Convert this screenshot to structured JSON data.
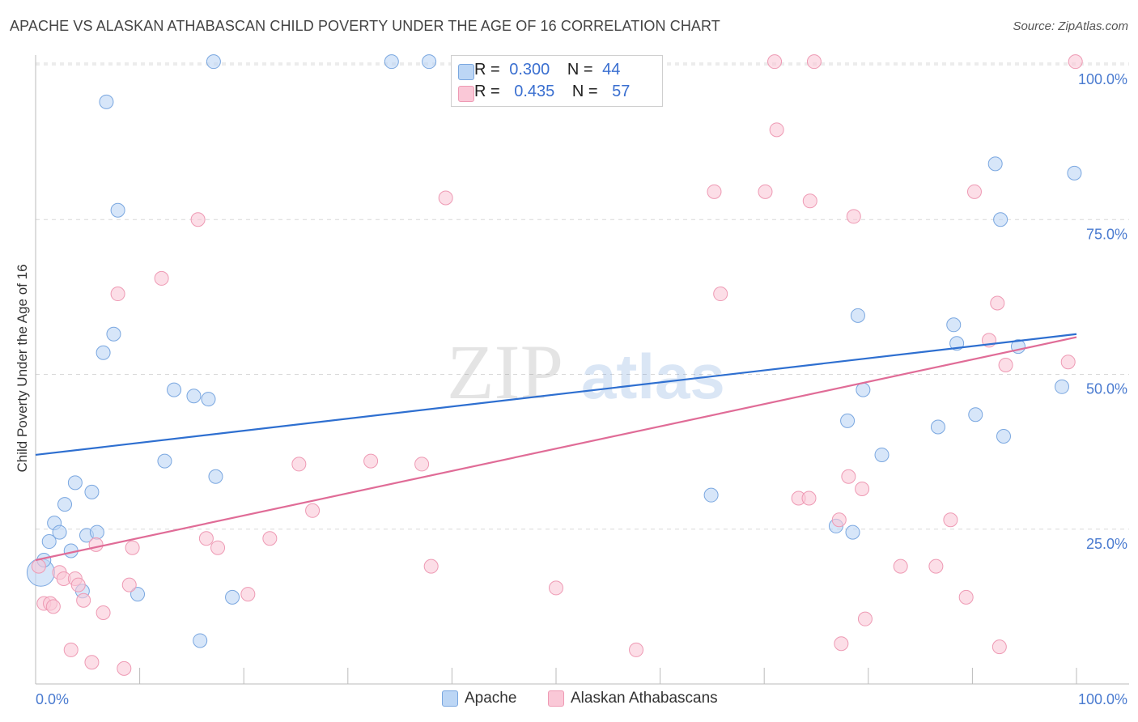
{
  "title": "APACHE VS ALASKAN ATHABASCAN CHILD POVERTY UNDER THE AGE OF 16 CORRELATION CHART",
  "source": "Source: ZipAtlas.com",
  "watermark": {
    "zip": "ZIP",
    "atlas": "atlas"
  },
  "legend_top": [
    {
      "r_label": "R =",
      "r_value": "0.300",
      "n_label": "N =",
      "n_value": "44",
      "color": "#a8c8f0"
    },
    {
      "r_label": "R =",
      "r_value": "0.435",
      "n_label": "N =",
      "n_value": "57",
      "color": "#f7b8cb"
    }
  ],
  "legend_bottom": [
    "Apache",
    "Alaskan Athabascans"
  ],
  "colors": {
    "apache_fill": "#bcd6f5",
    "apache_stroke": "#7aa7e0",
    "apache_line": "#2e6fd0",
    "athabascan_fill": "#fac8d7",
    "athabascan_stroke": "#ee9ab4",
    "athabascan_line": "#e06c97",
    "tick_text": "#4a7bd0",
    "grid": "#d8d8d8"
  },
  "chart_data": {
    "type": "scatter",
    "xlabel": "",
    "ylabel": "Child Poverty Under the Age of 16",
    "xlim": [
      0,
      100
    ],
    "ylim": [
      0,
      100
    ],
    "x_tick_labels": [
      "0.0%",
      "100.0%"
    ],
    "y_tick_labels": [
      "25.0%",
      "50.0%",
      "75.0%",
      "100.0%"
    ],
    "y_ticks": [
      25,
      50,
      75,
      100
    ],
    "grid": true,
    "legend_position": "top-center",
    "series": [
      {
        "name": "Apache",
        "r": 0.3,
        "n": 44,
        "trend": {
          "x": [
            0,
            100
          ],
          "y": [
            37,
            56.5
          ]
        },
        "points": [
          {
            "x": 0.5,
            "y": 18,
            "big": true
          },
          {
            "x": 0.8,
            "y": 20
          },
          {
            "x": 1.3,
            "y": 23
          },
          {
            "x": 1.8,
            "y": 26
          },
          {
            "x": 2.3,
            "y": 24.5
          },
          {
            "x": 2.8,
            "y": 29
          },
          {
            "x": 3.4,
            "y": 21.5
          },
          {
            "x": 3.8,
            "y": 32.5
          },
          {
            "x": 4.5,
            "y": 15
          },
          {
            "x": 4.9,
            "y": 24
          },
          {
            "x": 5.4,
            "y": 31
          },
          {
            "x": 5.9,
            "y": 24.5
          },
          {
            "x": 6.5,
            "y": 53.5
          },
          {
            "x": 6.8,
            "y": 94
          },
          {
            "x": 7.5,
            "y": 56.5
          },
          {
            "x": 7.9,
            "y": 76.5
          },
          {
            "x": 9.8,
            "y": 14.5
          },
          {
            "x": 12.4,
            "y": 36
          },
          {
            "x": 13.3,
            "y": 47.5
          },
          {
            "x": 15.2,
            "y": 46.5
          },
          {
            "x": 15.8,
            "y": 7
          },
          {
            "x": 16.6,
            "y": 46
          },
          {
            "x": 17.1,
            "y": 100.5
          },
          {
            "x": 17.3,
            "y": 33.5
          },
          {
            "x": 18.9,
            "y": 14
          },
          {
            "x": 34.2,
            "y": 100.5
          },
          {
            "x": 37.8,
            "y": 100.5
          },
          {
            "x": 64.9,
            "y": 30.5
          },
          {
            "x": 76.9,
            "y": 25.5
          },
          {
            "x": 78.0,
            "y": 42.5
          },
          {
            "x": 78.5,
            "y": 24.5
          },
          {
            "x": 79.0,
            "y": 59.5
          },
          {
            "x": 79.5,
            "y": 47.5
          },
          {
            "x": 81.3,
            "y": 37
          },
          {
            "x": 86.7,
            "y": 41.5
          },
          {
            "x": 88.2,
            "y": 58
          },
          {
            "x": 88.5,
            "y": 55
          },
          {
            "x": 90.3,
            "y": 43.5
          },
          {
            "x": 92.2,
            "y": 84
          },
          {
            "x": 92.7,
            "y": 75
          },
          {
            "x": 93.0,
            "y": 40
          },
          {
            "x": 94.4,
            "y": 54.5
          },
          {
            "x": 98.6,
            "y": 48
          },
          {
            "x": 99.8,
            "y": 82.5
          }
        ]
      },
      {
        "name": "Alaskan Athabascans",
        "r": 0.435,
        "n": 57,
        "trend": {
          "x": [
            0,
            100
          ],
          "y": [
            20,
            56
          ]
        },
        "points": [
          {
            "x": 0.3,
            "y": 19
          },
          {
            "x": 0.8,
            "y": 13
          },
          {
            "x": 1.4,
            "y": 13
          },
          {
            "x": 1.7,
            "y": 12.5
          },
          {
            "x": 2.3,
            "y": 18
          },
          {
            "x": 2.7,
            "y": 17
          },
          {
            "x": 3.4,
            "y": 5.5
          },
          {
            "x": 3.8,
            "y": 17
          },
          {
            "x": 4.1,
            "y": 16
          },
          {
            "x": 4.6,
            "y": 13.5
          },
          {
            "x": 5.4,
            "y": 3.5
          },
          {
            "x": 5.8,
            "y": 22.5
          },
          {
            "x": 6.5,
            "y": 11.5
          },
          {
            "x": 7.9,
            "y": 63
          },
          {
            "x": 8.5,
            "y": 2.5
          },
          {
            "x": 9.0,
            "y": 16
          },
          {
            "x": 9.3,
            "y": 22
          },
          {
            "x": 12.1,
            "y": 65.5
          },
          {
            "x": 15.6,
            "y": 75
          },
          {
            "x": 16.4,
            "y": 23.5
          },
          {
            "x": 17.5,
            "y": 22
          },
          {
            "x": 20.4,
            "y": 14.5
          },
          {
            "x": 22.5,
            "y": 23.5
          },
          {
            "x": 25.3,
            "y": 35.5
          },
          {
            "x": 26.6,
            "y": 28
          },
          {
            "x": 32.2,
            "y": 36
          },
          {
            "x": 37.1,
            "y": 35.5
          },
          {
            "x": 38.0,
            "y": 19
          },
          {
            "x": 39.4,
            "y": 78.5
          },
          {
            "x": 50.0,
            "y": 15.5
          },
          {
            "x": 57.7,
            "y": 5.5
          },
          {
            "x": 65.2,
            "y": 79.5
          },
          {
            "x": 65.8,
            "y": 63
          },
          {
            "x": 70.1,
            "y": 79.5
          },
          {
            "x": 71.0,
            "y": 100.5
          },
          {
            "x": 71.2,
            "y": 89.5
          },
          {
            "x": 73.3,
            "y": 30
          },
          {
            "x": 74.3,
            "y": 30
          },
          {
            "x": 74.4,
            "y": 78
          },
          {
            "x": 74.8,
            "y": 100.5
          },
          {
            "x": 77.2,
            "y": 26.5
          },
          {
            "x": 77.4,
            "y": 6.5
          },
          {
            "x": 78.1,
            "y": 33.5
          },
          {
            "x": 78.6,
            "y": 75.5
          },
          {
            "x": 79.4,
            "y": 31.5
          },
          {
            "x": 79.7,
            "y": 10.5
          },
          {
            "x": 83.1,
            "y": 19
          },
          {
            "x": 86.5,
            "y": 19
          },
          {
            "x": 87.9,
            "y": 26.5
          },
          {
            "x": 89.4,
            "y": 14
          },
          {
            "x": 90.2,
            "y": 79.5
          },
          {
            "x": 91.6,
            "y": 55.5
          },
          {
            "x": 92.4,
            "y": 61.5
          },
          {
            "x": 92.6,
            "y": 6
          },
          {
            "x": 93.2,
            "y": 51.5
          },
          {
            "x": 99.2,
            "y": 52
          },
          {
            "x": 99.9,
            "y": 100.5
          }
        ]
      }
    ]
  }
}
